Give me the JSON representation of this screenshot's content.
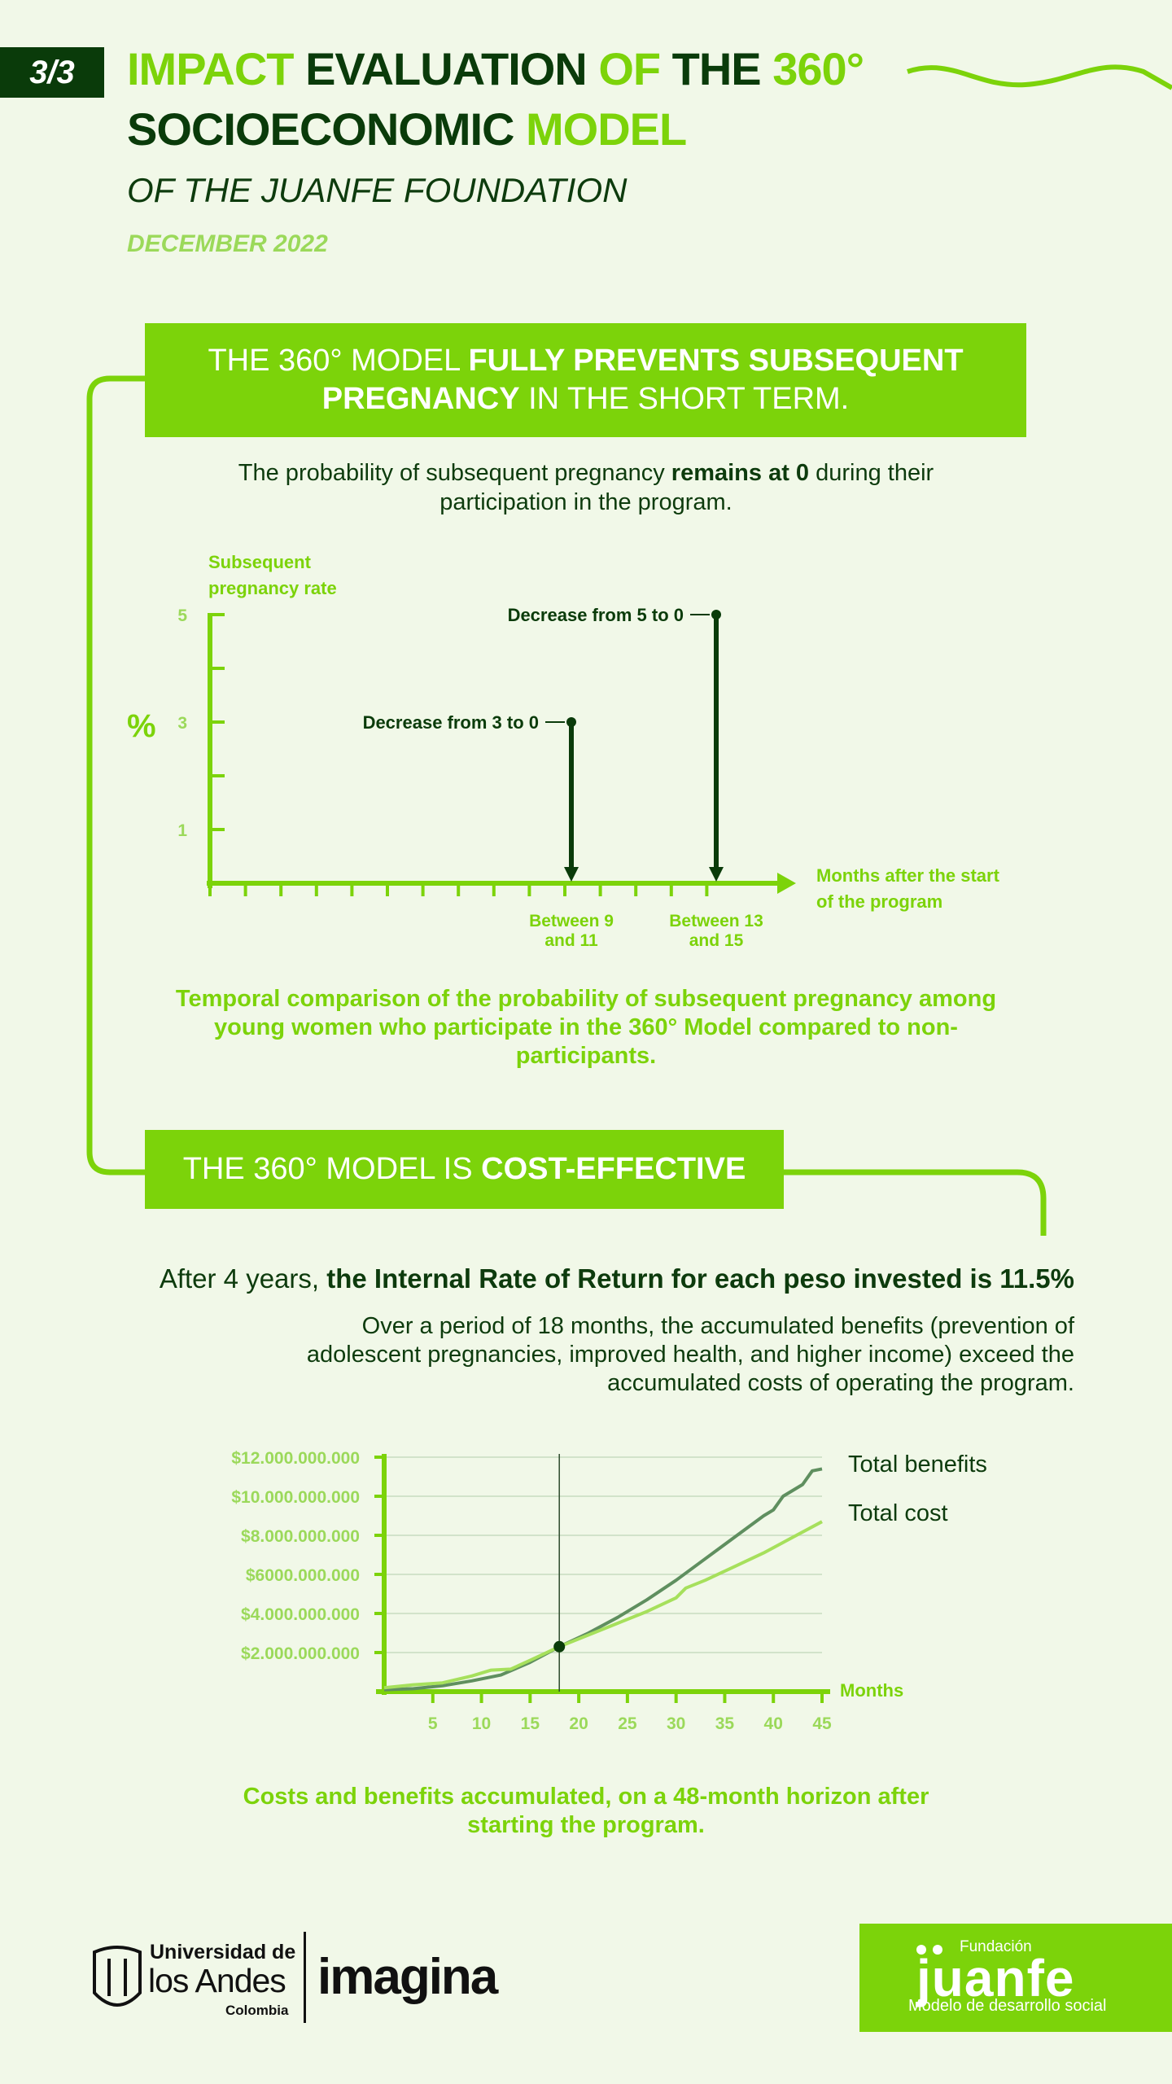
{
  "header": {
    "page_indicator": "3/3",
    "title_line1": [
      {
        "text": "IMPACT",
        "tone": "lime"
      },
      {
        "text": "EVALUATION",
        "tone": "dark"
      },
      {
        "text": "OF",
        "tone": "lime"
      },
      {
        "text": "THE",
        "tone": "dark"
      },
      {
        "text": "360°",
        "tone": "lime"
      }
    ],
    "title_line2": [
      {
        "text": "SOCIOECONOMIC",
        "tone": "dark"
      },
      {
        "text": "MODEL",
        "tone": "lime"
      }
    ],
    "subtitle": "OF THE JUANFE FOUNDATION",
    "date": "DECEMBER 2022"
  },
  "section1": {
    "banner_a": "THE 360° MODEL ",
    "banner_b": "FULLY PREVENTS SUBSEQUENT PREGNANCY",
    "banner_c": " IN THE SHORT TERM.",
    "lead_a": "The probability of subsequent pregnancy ",
    "lead_b": "remains at 0",
    "lead_c": " during their participation in the program.",
    "caption": "Temporal comparison of the probability of subsequent pregnancy among young women who participate in the 360° Model compared to non-participants."
  },
  "section2": {
    "banner_a": "THE 360° MODEL IS ",
    "banner_b": "COST-EFFECTIVE",
    "lead_a": "After 4 years, ",
    "lead_b": "the Internal Rate of Return for each peso invested is 11.5%",
    "body": "Over  a period of 18 months, the accumulated benefits (prevention of adolescent pregnancies, improved health, and higher income) exceed the accumulated costs of operating the program.",
    "caption": "Costs and benefits accumulated, on a 48-month horizon after starting the program."
  },
  "chart_data": [
    {
      "type": "bar",
      "ylabel": "Subsequent pregnancy rate",
      "yunit": "%",
      "xlabel": "Months after the start of the program",
      "yticks": [
        "5",
        "3",
        "1"
      ],
      "ylim": [
        0,
        5
      ],
      "categories": [
        "Between 9 and 11",
        "Between 13 and 15"
      ],
      "values_before": [
        3,
        5
      ],
      "values_after": [
        0,
        0
      ],
      "annotations": [
        "Decrease from 3 to 0",
        "Decrease from 5 to 0"
      ]
    },
    {
      "type": "line",
      "xlabel": "Months",
      "xlim": [
        0,
        45
      ],
      "xticks": [
        "5",
        "10",
        "15",
        "20",
        "25",
        "30",
        "35",
        "40",
        "45"
      ],
      "ylim": [
        0,
        12000000000
      ],
      "yticks": [
        "$2.000.000.000",
        "$4.000.000.000",
        "$6000.000.000",
        "$8.000.000.000",
        "$10.000.000.000",
        "$12.000.000.000"
      ],
      "crossover_x": 18,
      "crossover_y": 2300000000,
      "series": [
        {
          "name": "Total benefits",
          "color": "#5f8f5f",
          "x": [
            0,
            3,
            6,
            9,
            12,
            15,
            18,
            21,
            24,
            27,
            30,
            33,
            36,
            39,
            40,
            41,
            43,
            44,
            45
          ],
          "y": [
            100000000,
            150000000,
            300000000,
            550000000,
            850000000,
            1500000000,
            2300000000,
            3000000000,
            3800000000,
            4700000000,
            5700000000,
            6800000000,
            7900000000,
            9000000000,
            9300000000,
            10000000000,
            10600000000,
            11300000000,
            11400000000
          ]
        },
        {
          "name": "Total cost",
          "color": "#a6e05c",
          "x": [
            0,
            3,
            6,
            9,
            11,
            13,
            15,
            18,
            21,
            24,
            27,
            30,
            31,
            33,
            36,
            39,
            42,
            45
          ],
          "y": [
            200000000,
            350000000,
            450000000,
            800000000,
            1100000000,
            1150000000,
            1600000000,
            2300000000,
            2900000000,
            3500000000,
            4100000000,
            4800000000,
            5300000000,
            5700000000,
            6400000000,
            7100000000,
            7900000000,
            8700000000
          ]
        }
      ]
    }
  ],
  "footer": {
    "uni_line1": "Universidad de",
    "uni_line2": "los Andes",
    "uni_line3": "Colombia",
    "imagina": "imagina",
    "juanfe_top": "Fundación",
    "juanfe_name": "juanfe",
    "juanfe_tag": "Modelo de desarrollo social"
  },
  "colors": {
    "lime": "#7cd30a",
    "dark": "#0a3b0a",
    "background": "#f1f8e8",
    "pale_lime": "#9bd95a"
  }
}
